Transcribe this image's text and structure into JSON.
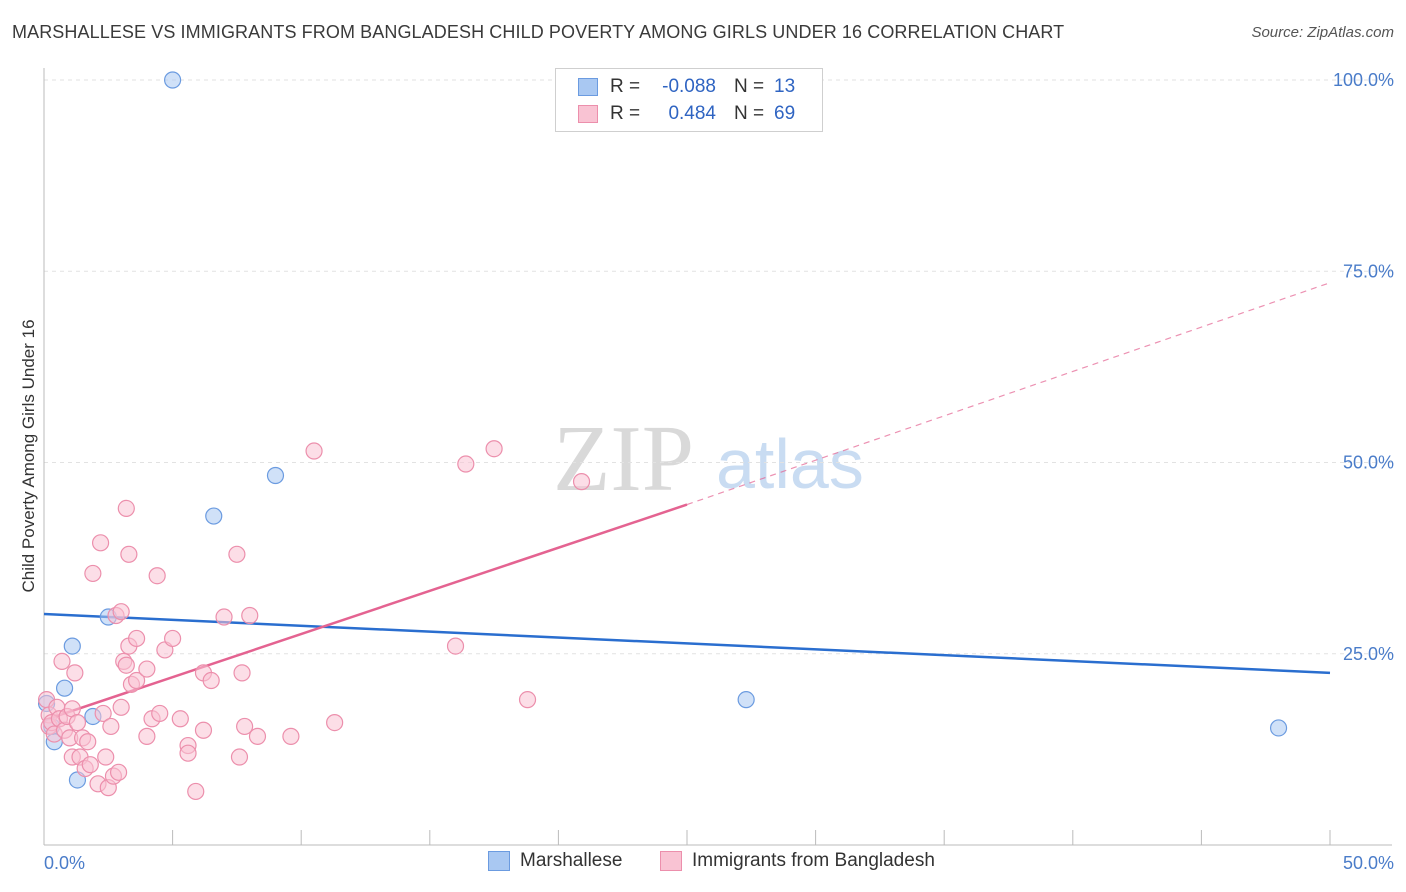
{
  "title": "MARSHALLESE VS IMMIGRANTS FROM BANGLADESH CHILD POVERTY AMONG GIRLS UNDER 16 CORRELATION CHART",
  "source": "Source: ZipAtlas.com",
  "watermark": {
    "zip": "ZIP",
    "atlas": "atlas"
  },
  "legend": {
    "rows": [
      {
        "r_label": "R =",
        "r_value": "-0.088",
        "n_label": "N =",
        "n_value": "13",
        "color": "#a9c8f2",
        "border": "#6b9be0"
      },
      {
        "r_label": "R =",
        "r_value": "0.484",
        "n_label": "N =",
        "n_value": "69",
        "color": "#f9c3d3",
        "border": "#ec8fac"
      }
    ]
  },
  "bottom_legend": {
    "items": [
      {
        "label": "Marshallese",
        "color": "#a9c8f2",
        "border": "#6b9be0"
      },
      {
        "label": "Immigrants from Bangladesh",
        "color": "#f9c3d3",
        "border": "#ec8fac"
      }
    ]
  },
  "chart_data": {
    "type": "scatter",
    "title": "MARSHALLESE VS IMMIGRANTS FROM BANGLADESH CHILD POVERTY AMONG GIRLS UNDER 16 CORRELATION CHART",
    "xlabel": "",
    "ylabel": "Child Poverty Among Girls Under 16",
    "xlim": [
      0,
      50
    ],
    "ylim": [
      0,
      100
    ],
    "x_tick_labels": [
      "0.0%",
      "50.0%"
    ],
    "y_ticks": [
      25,
      50,
      75,
      100
    ],
    "y_tick_labels": [
      "25.0%",
      "50.0%",
      "75.0%",
      "100.0%"
    ],
    "grid": true,
    "series": [
      {
        "name": "Marshallese",
        "color": "#a9c8f2",
        "edge": "#6b9be0",
        "line_color": "#2a6ecf",
        "trend": {
          "x0": 0,
          "y0": 30.2,
          "x1": 50,
          "y1": 22.5
        },
        "points": [
          {
            "x": 0.1,
            "y": 18.5
          },
          {
            "x": 0.4,
            "y": 13.5
          },
          {
            "x": 0.8,
            "y": 20.5
          },
          {
            "x": 1.1,
            "y": 26.0
          },
          {
            "x": 1.3,
            "y": 8.5
          },
          {
            "x": 1.9,
            "y": 16.8
          },
          {
            "x": 2.5,
            "y": 29.8
          },
          {
            "x": 5.0,
            "y": 100.0
          },
          {
            "x": 6.6,
            "y": 43.0
          },
          {
            "x": 9.0,
            "y": 48.3
          },
          {
            "x": 27.3,
            "y": 19.0
          },
          {
            "x": 48.0,
            "y": 15.3
          },
          {
            "x": 0.3,
            "y": 15.5
          }
        ]
      },
      {
        "name": "Immigrants from Bangladesh",
        "color": "#f9c3d3",
        "edge": "#ec8fac",
        "line_color": "#e46391",
        "trend": {
          "x0": 0,
          "y0": 16.3,
          "x1": 25,
          "y1": 44.5
        },
        "trend_dashed": {
          "x0": 25,
          "y0": 44.5,
          "x1": 50,
          "y1": 73.5
        },
        "points": [
          {
            "x": 0.1,
            "y": 19.0
          },
          {
            "x": 0.2,
            "y": 17.0
          },
          {
            "x": 0.2,
            "y": 15.5
          },
          {
            "x": 0.3,
            "y": 16.0
          },
          {
            "x": 0.4,
            "y": 14.5
          },
          {
            "x": 0.5,
            "y": 18.0
          },
          {
            "x": 0.6,
            "y": 16.5
          },
          {
            "x": 0.7,
            "y": 24.0
          },
          {
            "x": 0.8,
            "y": 15.0
          },
          {
            "x": 0.9,
            "y": 16.8
          },
          {
            "x": 1.0,
            "y": 14.0
          },
          {
            "x": 1.1,
            "y": 17.8
          },
          {
            "x": 1.1,
            "y": 11.5
          },
          {
            "x": 1.2,
            "y": 22.5
          },
          {
            "x": 1.3,
            "y": 16.0
          },
          {
            "x": 1.4,
            "y": 11.5
          },
          {
            "x": 1.5,
            "y": 14.0
          },
          {
            "x": 1.6,
            "y": 10.0
          },
          {
            "x": 1.7,
            "y": 13.5
          },
          {
            "x": 1.8,
            "y": 10.5
          },
          {
            "x": 1.9,
            "y": 35.5
          },
          {
            "x": 2.1,
            "y": 8.0
          },
          {
            "x": 2.2,
            "y": 39.5
          },
          {
            "x": 2.3,
            "y": 17.2
          },
          {
            "x": 2.4,
            "y": 11.5
          },
          {
            "x": 2.5,
            "y": 7.5
          },
          {
            "x": 2.6,
            "y": 15.5
          },
          {
            "x": 2.7,
            "y": 9.0
          },
          {
            "x": 2.8,
            "y": 30.0
          },
          {
            "x": 2.9,
            "y": 9.5
          },
          {
            "x": 3.0,
            "y": 30.5
          },
          {
            "x": 3.0,
            "y": 18.0
          },
          {
            "x": 3.1,
            "y": 24.0
          },
          {
            "x": 3.2,
            "y": 23.5
          },
          {
            "x": 3.2,
            "y": 44.0
          },
          {
            "x": 3.3,
            "y": 26.0
          },
          {
            "x": 3.3,
            "y": 38.0
          },
          {
            "x": 3.4,
            "y": 21.0
          },
          {
            "x": 3.6,
            "y": 21.5
          },
          {
            "x": 3.6,
            "y": 27.0
          },
          {
            "x": 4.0,
            "y": 23.0
          },
          {
            "x": 4.0,
            "y": 14.2
          },
          {
            "x": 4.2,
            "y": 16.5
          },
          {
            "x": 4.4,
            "y": 35.2
          },
          {
            "x": 4.5,
            "y": 17.2
          },
          {
            "x": 4.7,
            "y": 25.5
          },
          {
            "x": 5.0,
            "y": 27.0
          },
          {
            "x": 5.3,
            "y": 16.5
          },
          {
            "x": 5.6,
            "y": 13.0
          },
          {
            "x": 5.6,
            "y": 12.0
          },
          {
            "x": 5.9,
            "y": 7.0
          },
          {
            "x": 6.2,
            "y": 15.0
          },
          {
            "x": 6.2,
            "y": 22.5
          },
          {
            "x": 6.5,
            "y": 21.5
          },
          {
            "x": 7.0,
            "y": 29.8
          },
          {
            "x": 7.5,
            "y": 38.0
          },
          {
            "x": 7.6,
            "y": 11.5
          },
          {
            "x": 7.7,
            "y": 22.5
          },
          {
            "x": 7.8,
            "y": 15.5
          },
          {
            "x": 8.0,
            "y": 30.0
          },
          {
            "x": 8.3,
            "y": 14.2
          },
          {
            "x": 9.6,
            "y": 14.2
          },
          {
            "x": 10.5,
            "y": 51.5
          },
          {
            "x": 11.3,
            "y": 16.0
          },
          {
            "x": 16.0,
            "y": 26.0
          },
          {
            "x": 16.4,
            "y": 49.8
          },
          {
            "x": 17.5,
            "y": 51.8
          },
          {
            "x": 18.8,
            "y": 19.0
          },
          {
            "x": 20.9,
            "y": 47.5
          }
        ]
      }
    ]
  }
}
